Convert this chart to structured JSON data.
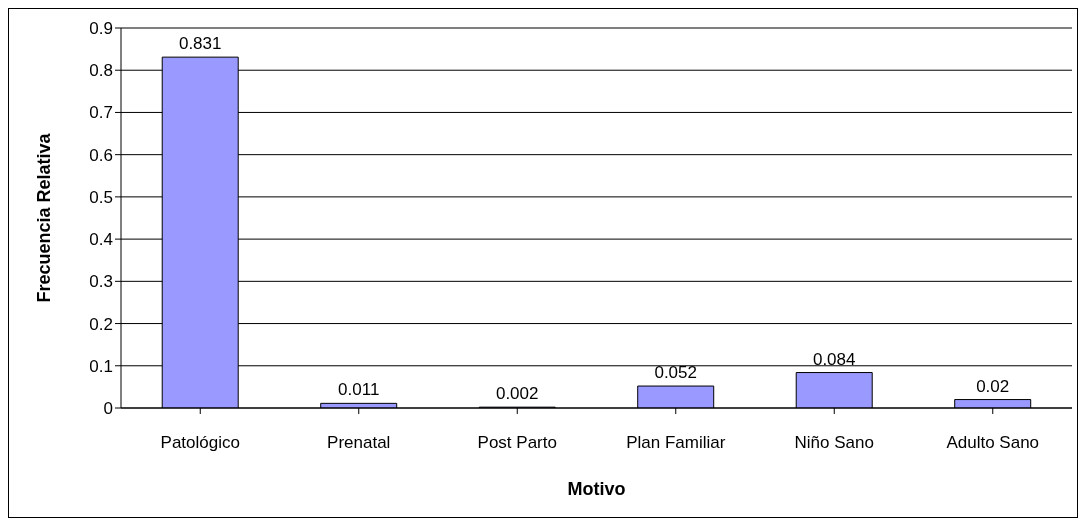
{
  "chart_data": {
    "type": "bar",
    "xlabel": "Motivo",
    "ylabel": "Frecuencia Relativa",
    "categories": [
      "Patológico",
      "Prenatal",
      "Post Parto",
      "Plan Familiar",
      "Niño Sano",
      "Adulto Sano"
    ],
    "values": [
      0.831,
      0.011,
      0.002,
      0.052,
      0.084,
      0.02
    ],
    "color": "#9999ff",
    "ylim": [
      0,
      0.9
    ],
    "yticks": [
      0,
      0.1,
      0.2,
      0.3,
      0.4,
      0.5,
      0.6,
      0.7,
      0.8,
      0.9
    ],
    "grid": "y",
    "data_labels": true
  }
}
